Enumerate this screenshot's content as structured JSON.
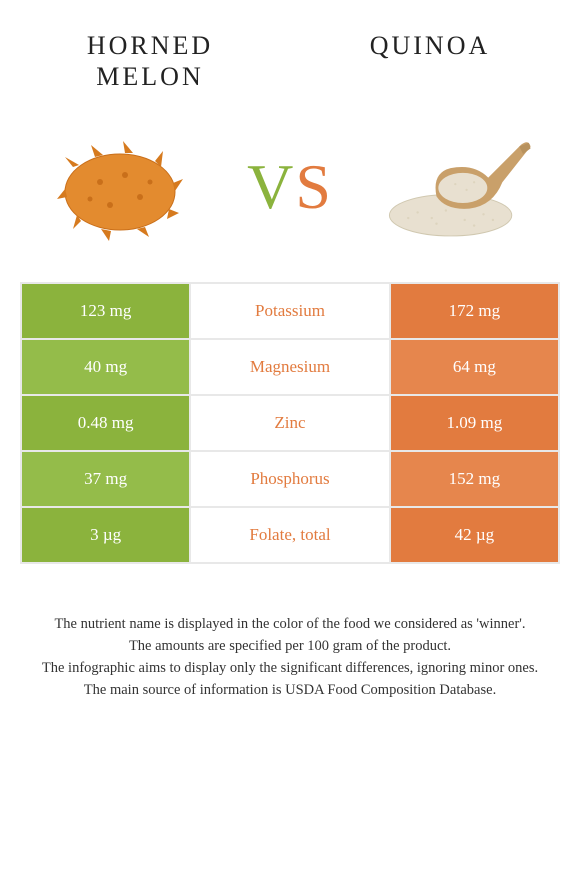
{
  "food_left": {
    "name": "Horned melon",
    "color": "#8bb33d",
    "dark_color": "#7aa233"
  },
  "food_right": {
    "name": "Quinoa",
    "color": "#e27b3f",
    "dark_color": "#d56e34"
  },
  "vs_text": {
    "v": "V",
    "s": "S"
  },
  "nutrients": [
    {
      "label": "Potassium",
      "left": "123 mg",
      "right": "172 mg",
      "winner": "right"
    },
    {
      "label": "Magnesium",
      "left": "40 mg",
      "right": "64 mg",
      "winner": "right"
    },
    {
      "label": "Zinc",
      "left": "0.48 mg",
      "right": "1.09 mg",
      "winner": "right"
    },
    {
      "label": "Phosphorus",
      "left": "37 mg",
      "right": "152 mg",
      "winner": "right"
    },
    {
      "label": "Folate, total",
      "left": "3 µg",
      "right": "42 µg",
      "winner": "right"
    }
  ],
  "footer_lines": [
    "The nutrient name is displayed in the color of the food we considered as 'winner'.",
    "The amounts are specified per 100 gram of the product.",
    "The infographic aims to display only the significant differences, ignoring minor ones.",
    "The main source of information is USDA Food Composition Database."
  ],
  "style": {
    "row_bg_alt_left": [
      "#8bb33d",
      "#94bc4a"
    ],
    "row_bg_alt_right": [
      "#e27b3f",
      "#e6864d"
    ],
    "label_winner_color": {
      "left": "#8bb33d",
      "right": "#e27b3f"
    },
    "font": "Georgia",
    "title_fontsize": 26,
    "cell_fontsize": 17,
    "footer_fontsize": 14.5
  }
}
